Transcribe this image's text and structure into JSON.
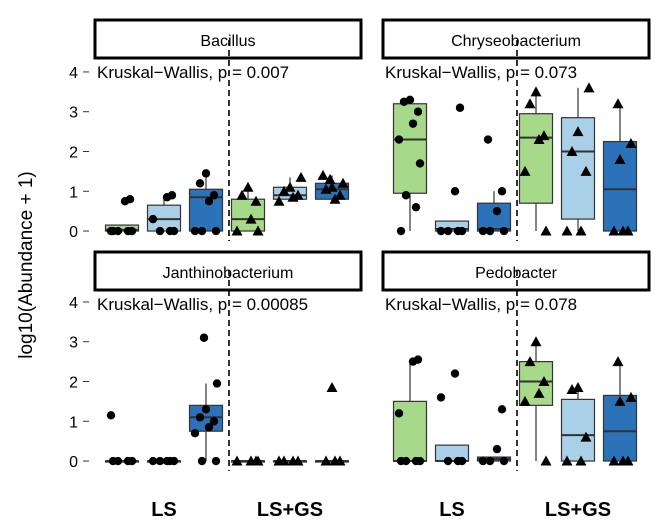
{
  "chart_data": {
    "type": "box",
    "ylabel": "log10(Abundance + 1)",
    "yticks": [
      0,
      1,
      2,
      3,
      4
    ],
    "ylim": [
      -0.15,
      4.25
    ],
    "group_labels": [
      "LS",
      "LS+GS"
    ],
    "colors": {
      "light_green": "#a6d98a",
      "light_blue": "#a9d0e6",
      "dark_blue": "#2b72b8",
      "strip": "#ffffff",
      "divider": "#000000"
    },
    "panels": [
      {
        "title": "Bacillus",
        "annotation": "Kruskal−Wallis, p = 0.007",
        "boxes": [
          {
            "group": "LS",
            "color": "light_green",
            "marker": "circle",
            "q1": 0.0,
            "median": 0.03,
            "q3": 0.15,
            "whisker_low": 0.0,
            "whisker_high": 0.15,
            "points": [
              0.0,
              0.0,
              0.0,
              0.0,
              0.0,
              0.75,
              0.8
            ]
          },
          {
            "group": "LS",
            "color": "light_blue",
            "marker": "circle",
            "q1": 0.0,
            "median": 0.3,
            "q3": 0.65,
            "whisker_low": 0.0,
            "whisker_high": 0.9,
            "points": [
              0.0,
              0.0,
              0.0,
              0.3,
              0.85,
              0.9
            ]
          },
          {
            "group": "LS",
            "color": "dark_blue",
            "marker": "circle",
            "q1": 0.0,
            "median": 0.85,
            "q3": 1.05,
            "whisker_low": 0.0,
            "whisker_high": 1.45,
            "points": [
              0.0,
              0.0,
              0.0,
              0.75,
              0.9,
              1.2,
              1.45
            ]
          },
          {
            "group": "LS+GS",
            "color": "light_green",
            "marker": "triangle",
            "q1": 0.0,
            "median": 0.3,
            "q3": 0.8,
            "whisker_low": 0.0,
            "whisker_high": 1.1,
            "points": [
              0.0,
              0.0,
              0.3,
              0.75,
              0.9,
              1.1
            ]
          },
          {
            "group": "LS+GS",
            "color": "light_blue",
            "marker": "triangle",
            "q1": 0.8,
            "median": 0.9,
            "q3": 1.1,
            "whisker_low": 0.75,
            "whisker_high": 1.35,
            "points": [
              0.75,
              0.85,
              0.9,
              1.0,
              1.1,
              1.35
            ]
          },
          {
            "group": "LS+GS",
            "color": "dark_blue",
            "marker": "triangle",
            "q1": 0.8,
            "median": 1.05,
            "q3": 1.2,
            "whisker_low": 0.8,
            "whisker_high": 1.4,
            "points": [
              0.8,
              0.9,
              1.05,
              1.1,
              1.2,
              1.3,
              1.4
            ]
          }
        ]
      },
      {
        "title": "Chryseobacterium",
        "annotation": "Kruskal−Wallis, p = 0.073",
        "boxes": [
          {
            "group": "LS",
            "color": "light_green",
            "marker": "circle",
            "q1": 0.95,
            "median": 2.3,
            "q3": 3.2,
            "whisker_low": 0.0,
            "whisker_high": 3.3,
            "points": [
              0.0,
              0.6,
              0.9,
              1.7,
              2.3,
              2.7,
              3.0,
              3.25,
              3.3
            ]
          },
          {
            "group": "LS",
            "color": "light_blue",
            "marker": "circle",
            "q1": 0.0,
            "median": 0.05,
            "q3": 0.25,
            "whisker_low": 0.0,
            "whisker_high": 0.25,
            "points": [
              0.0,
              0.0,
              0.0,
              0.0,
              1.0,
              3.1
            ]
          },
          {
            "group": "LS",
            "color": "dark_blue",
            "marker": "circle",
            "q1": 0.0,
            "median": 0.05,
            "q3": 0.7,
            "whisker_low": 0.0,
            "whisker_high": 1.0,
            "points": [
              0.0,
              0.0,
              0.0,
              0.5,
              1.0,
              2.3
            ]
          },
          {
            "group": "LS+GS",
            "color": "light_green",
            "marker": "triangle",
            "q1": 0.7,
            "median": 2.35,
            "q3": 2.95,
            "whisker_low": 0.0,
            "whisker_high": 3.5,
            "points": [
              0.0,
              1.5,
              2.3,
              2.4,
              3.2,
              3.5
            ]
          },
          {
            "group": "LS+GS",
            "color": "light_blue",
            "marker": "triangle",
            "q1": 0.3,
            "median": 2.0,
            "q3": 2.85,
            "whisker_low": 0.0,
            "whisker_high": 3.6,
            "points": [
              0.0,
              0.0,
              1.5,
              2.0,
              2.5,
              3.6
            ]
          },
          {
            "group": "LS+GS",
            "color": "dark_blue",
            "marker": "triangle",
            "q1": 0.0,
            "median": 1.05,
            "q3": 2.25,
            "whisker_low": 0.0,
            "whisker_high": 3.2,
            "points": [
              0.0,
              0.0,
              0.0,
              1.8,
              2.2,
              3.2
            ]
          }
        ]
      },
      {
        "title": "Janthinobacterium",
        "annotation": "Kruskal−Wallis, p = 0.00085",
        "boxes": [
          {
            "group": "LS",
            "color": "light_green",
            "marker": "circle",
            "q1": 0.0,
            "median": 0.0,
            "q3": 0.0,
            "whisker_low": 0.0,
            "whisker_high": 0.0,
            "points": [
              0.0,
              0.0,
              0.0,
              0.0,
              1.15
            ]
          },
          {
            "group": "LS",
            "color": "light_blue",
            "marker": "circle",
            "q1": 0.0,
            "median": 0.0,
            "q3": 0.0,
            "whisker_low": 0.0,
            "whisker_high": 0.0,
            "points": [
              0.0,
              0.0,
              0.0,
              0.0,
              0.0
            ]
          },
          {
            "group": "LS",
            "color": "dark_blue",
            "marker": "circle",
            "q1": 0.75,
            "median": 1.1,
            "q3": 1.4,
            "whisker_low": 0.0,
            "whisker_high": 1.95,
            "points": [
              0.0,
              0.0,
              0.7,
              0.85,
              1.0,
              1.1,
              1.3,
              1.95,
              3.1
            ]
          },
          {
            "group": "LS+GS",
            "color": "light_green",
            "marker": "triangle",
            "q1": 0.0,
            "median": 0.0,
            "q3": 0.0,
            "whisker_low": 0.0,
            "whisker_high": 0.0,
            "points": [
              0.0,
              0.0,
              0.0,
              0.0
            ]
          },
          {
            "group": "LS+GS",
            "color": "light_blue",
            "marker": "triangle",
            "q1": 0.0,
            "median": 0.0,
            "q3": 0.0,
            "whisker_low": 0.0,
            "whisker_high": 0.0,
            "points": [
              0.0,
              0.0,
              0.0,
              0.0
            ]
          },
          {
            "group": "LS+GS",
            "color": "dark_blue",
            "marker": "triangle",
            "q1": 0.0,
            "median": 0.0,
            "q3": 0.0,
            "whisker_low": 0.0,
            "whisker_high": 0.0,
            "points": [
              0.0,
              0.0,
              0.0,
              1.85
            ]
          }
        ]
      },
      {
        "title": "Pedobacter",
        "annotation": "Kruskal−Wallis, p = 0.078",
        "boxes": [
          {
            "group": "LS",
            "color": "light_green",
            "marker": "circle",
            "q1": 0.0,
            "median": 0.0,
            "q3": 1.5,
            "whisker_low": 0.0,
            "whisker_high": 2.5,
            "points": [
              0.0,
              0.0,
              0.0,
              0.0,
              1.2,
              2.5,
              2.55
            ]
          },
          {
            "group": "LS",
            "color": "light_blue",
            "marker": "circle",
            "q1": 0.0,
            "median": 0.0,
            "q3": 0.4,
            "whisker_low": 0.0,
            "whisker_high": 0.4,
            "points": [
              0.0,
              0.0,
              0.0,
              1.6,
              2.2
            ]
          },
          {
            "group": "LS",
            "color": "dark_blue",
            "marker": "circle",
            "q1": 0.0,
            "median": 0.05,
            "q3": 0.1,
            "whisker_low": 0.0,
            "whisker_high": 0.1,
            "points": [
              0.0,
              0.0,
              0.0,
              0.3,
              1.3
            ]
          },
          {
            "group": "LS+GS",
            "color": "light_green",
            "marker": "triangle",
            "q1": 1.4,
            "median": 2.0,
            "q3": 2.5,
            "whisker_low": 0.0,
            "whisker_high": 3.0,
            "points": [
              0.0,
              1.5,
              1.7,
              2.0,
              2.5,
              3.0
            ]
          },
          {
            "group": "LS+GS",
            "color": "light_blue",
            "marker": "triangle",
            "q1": 0.0,
            "median": 0.65,
            "q3": 1.55,
            "whisker_low": 0.0,
            "whisker_high": 1.85,
            "points": [
              0.0,
              0.0,
              0.6,
              1.8,
              1.85
            ]
          },
          {
            "group": "LS+GS",
            "color": "dark_blue",
            "marker": "triangle",
            "q1": 0.0,
            "median": 0.75,
            "q3": 1.65,
            "whisker_low": 0.0,
            "whisker_high": 2.5,
            "points": [
              0.0,
              0.0,
              0.0,
              1.5,
              1.6,
              2.5
            ]
          }
        ]
      }
    ]
  }
}
